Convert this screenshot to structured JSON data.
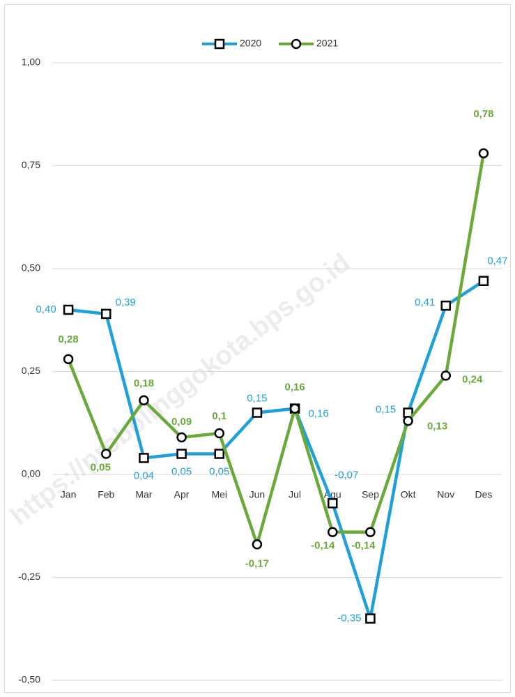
{
  "chart_data": {
    "type": "line",
    "watermark": "https://probolinggokota.bps.go.id",
    "categories": [
      "Jan",
      "Feb",
      "Mar",
      "Apr",
      "Mei",
      "Jun",
      "Jul",
      "Agu",
      "Sep",
      "Okt",
      "Nov",
      "Des"
    ],
    "series": [
      {
        "name": "2020",
        "color": "#1ea0dc",
        "marker": "square",
        "values": [
          0.4,
          0.39,
          0.04,
          0.05,
          0.05,
          0.15,
          0.16,
          -0.07,
          -0.35,
          0.15,
          0.41,
          0.47
        ],
        "value_labels": [
          "0,40",
          "0,39",
          "0,04",
          "0,05",
          "0,05",
          "0,15",
          "0,16",
          "-0,07",
          "-0,35",
          "0,15",
          "0,41",
          "0,47"
        ]
      },
      {
        "name": "2021",
        "color": "#6aaa3a",
        "marker": "circle",
        "values": [
          0.28,
          0.05,
          0.18,
          0.09,
          0.1,
          -0.17,
          0.16,
          -0.14,
          -0.14,
          0.13,
          0.24,
          0.78
        ],
        "value_labels": [
          "0,28",
          "0,05",
          "0,18",
          "0,09",
          "0,1",
          "-0,17",
          "0,16",
          "-0,14",
          "-0,14",
          "0,13",
          "0,24",
          "0,78"
        ]
      }
    ],
    "ylim": [
      -0.5,
      1.0
    ],
    "yticks": [
      {
        "value": -0.5,
        "label": "-0,50"
      },
      {
        "value": -0.25,
        "label": "-0,25"
      },
      {
        "value": 0,
        "label": "0,00"
      },
      {
        "value": 0.25,
        "label": "0,25"
      },
      {
        "value": 0.5,
        "label": "0,50"
      },
      {
        "value": 0.75,
        "label": "0,75"
      },
      {
        "value": 1.0,
        "label": "1,00"
      }
    ],
    "grid": true,
    "legend": "top"
  }
}
